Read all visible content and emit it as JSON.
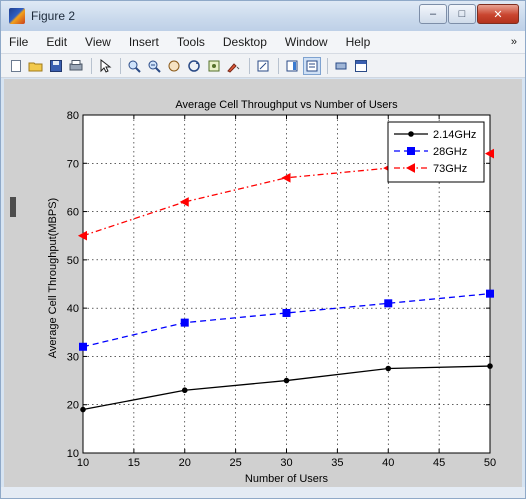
{
  "window": {
    "title": "Figure 2",
    "minimize_glyph": "–",
    "maximize_glyph": "□",
    "close_glyph": "✕"
  },
  "menubar": {
    "items": [
      "File",
      "Edit",
      "View",
      "Insert",
      "Tools",
      "Desktop",
      "Window",
      "Help"
    ],
    "overflow_glyph": "»"
  },
  "toolbar": {
    "icons": [
      "new-figure-icon",
      "open-file-icon",
      "save-icon",
      "print-icon",
      "select-arrow-icon",
      "zoom-in-icon",
      "zoom-out-icon",
      "pan-icon",
      "rotate-3d-icon",
      "data-cursor-icon",
      "brush-icon",
      "link-plot-icon",
      "colorbar-icon",
      "legend-icon",
      "hide-plot-tools-icon",
      "show-plot-tools-icon"
    ]
  },
  "colors": {
    "figure_background": "#d0d0d0",
    "axes_background": "#ffffff",
    "series_black": "#000000",
    "series_blue": "#0000ff",
    "series_red": "#ff0000"
  },
  "chart_data": {
    "type": "line",
    "title": "Average Cell Throughput vs Number of Users",
    "xlabel": "Number of Users",
    "ylabel": "Average Cell Throughput(MBPS)",
    "xlim": [
      10,
      50
    ],
    "ylim": [
      10,
      80
    ],
    "xticks": [
      "10",
      "15",
      "20",
      "25",
      "30",
      "35",
      "40",
      "45",
      "50"
    ],
    "yticks": [
      "10",
      "20",
      "30",
      "40",
      "50",
      "60",
      "70",
      "80"
    ],
    "grid": true,
    "legend_position": "top-right",
    "x": [
      10,
      20,
      30,
      40,
      50
    ],
    "series": [
      {
        "name": "2.14GHz",
        "values": [
          19,
          23,
          25,
          27.5,
          28
        ],
        "color": "#000000",
        "line": "solid",
        "marker": "point"
      },
      {
        "name": "28GHz",
        "values": [
          32,
          37,
          39,
          41,
          43
        ],
        "color": "#0000ff",
        "line": "dashed",
        "marker": "square"
      },
      {
        "name": "73GHz",
        "values": [
          55,
          62,
          67,
          69,
          72
        ],
        "color": "#ff0000",
        "line": "dashdot",
        "marker": "triangle-left"
      }
    ]
  }
}
